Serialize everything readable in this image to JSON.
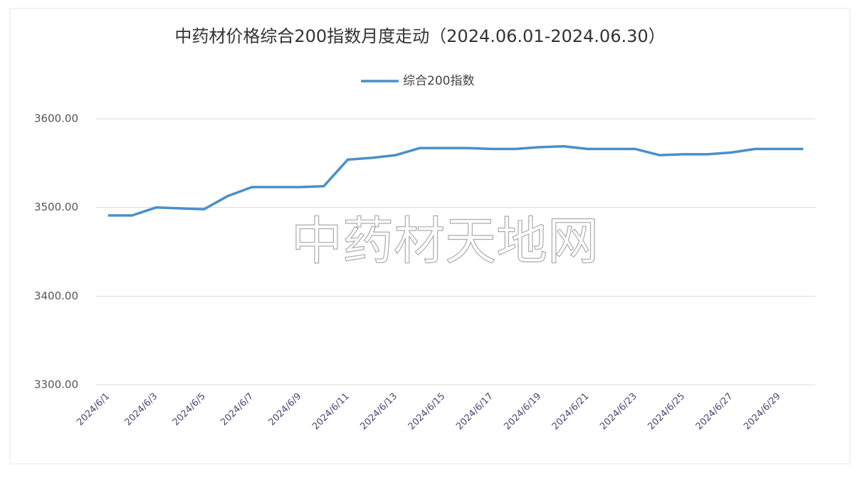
{
  "chart_data": {
    "type": "line",
    "title": "中药材价格综合200指数月度走动（2024.06.01-2024.06.30）",
    "watermark": "中药材天地网",
    "categories": [
      "2024/6/1",
      null,
      "2024/6/3",
      null,
      "2024/6/5",
      null,
      "2024/6/7",
      null,
      "2024/6/9",
      null,
      "2024/6/11",
      null,
      "2024/6/13",
      null,
      "2024/6/15",
      null,
      "2024/6/17",
      null,
      "2024/6/19",
      null,
      "2024/6/21",
      null,
      "2024/6/23",
      null,
      "2024/6/25",
      null,
      "2024/6/27",
      null,
      "2024/6/29",
      null
    ],
    "series": [
      {
        "name": "综合200指数",
        "color": "#4a8fc9",
        "values": [
          3491,
          3491,
          3500,
          3499,
          3498,
          3513,
          3523,
          3523,
          3523,
          3524,
          3554,
          3556,
          3559,
          3567,
          3567,
          3567,
          3566,
          3566,
          3568,
          3569,
          3566,
          3566,
          3566,
          3559,
          3560,
          3560,
          3562,
          3566,
          3566,
          3566
        ]
      }
    ],
    "ylim": [
      3300,
      3600
    ],
    "yticks": [
      {
        "value": 3300,
        "label": "3300.00"
      },
      {
        "value": 3400,
        "label": "3400.00"
      },
      {
        "value": 3500,
        "label": "3500.00"
      },
      {
        "value": 3600,
        "label": "3600.00"
      }
    ],
    "grid": true
  }
}
